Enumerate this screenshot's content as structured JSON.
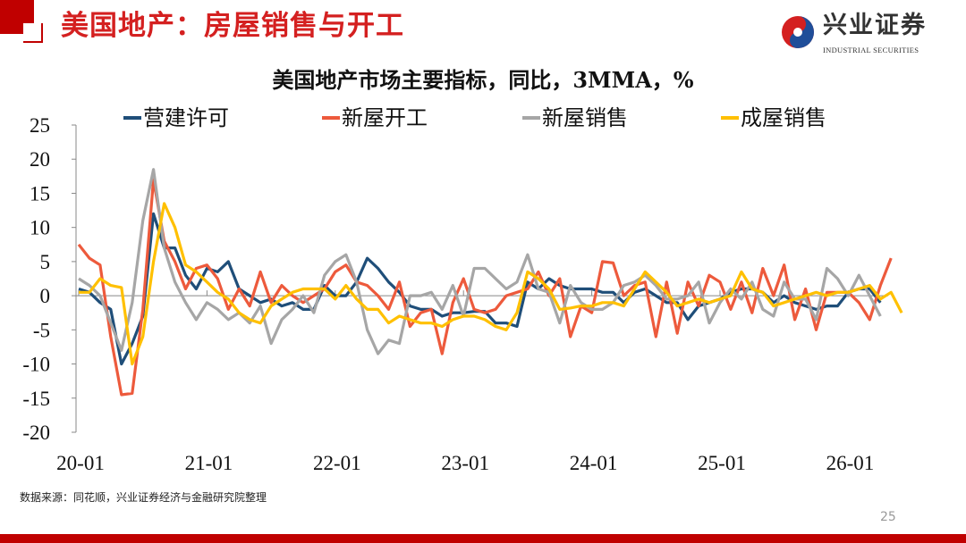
{
  "slide": {
    "title": "美国地产：房屋销售与开工",
    "logo_cn": "兴业证券",
    "logo_en": "INDUSTRIAL SECURITIES",
    "source": "数据来源：同花顺，兴业证券经济与金融研究院整理",
    "page_number": "25",
    "accent_color": "#c00000"
  },
  "chart_data": {
    "type": "line",
    "title": "美国地产市场主要指标，同比，3MMA，%",
    "x_start": "2020-01",
    "x_frequency": "monthly",
    "x_tick_labels": [
      "20-01",
      "21-01",
      "22-01",
      "23-01",
      "24-01",
      "25-01",
      "26-01"
    ],
    "y_tick_labels": [
      "25",
      "20",
      "15",
      "10",
      "5",
      "0",
      "-5",
      "-10",
      "-15",
      "-20"
    ],
    "ylim": [
      -20,
      25
    ],
    "grid": false,
    "legend_position": "top",
    "series": [
      {
        "name": "营建许可",
        "color": "#1f4e79",
        "values": [
          1,
          0.5,
          -1,
          -2,
          -10,
          -7,
          -3,
          12,
          7,
          7,
          3,
          1,
          4,
          3.5,
          5,
          1,
          0,
          -1,
          -0.5,
          -1.5,
          -1,
          -2,
          -2,
          1.5,
          0,
          0,
          2,
          5.5,
          4,
          2,
          0.5,
          -1.5,
          -2,
          -2,
          -3,
          -2.5,
          -2.5,
          -2.3,
          -2.3,
          -4,
          -4,
          -4.5,
          2,
          1,
          2.5,
          1.5,
          1,
          1,
          1,
          0.5,
          0.5,
          -1,
          0.5,
          1,
          0,
          -1,
          -1,
          -3.5,
          -1.5,
          -1,
          -0.5,
          0.5,
          1,
          1,
          0.5,
          -1,
          0,
          -1,
          -1.5,
          -2,
          -1.5,
          -1.5,
          0.5,
          1,
          1,
          -1
        ]
      },
      {
        "name": "新屋开工",
        "color": "#ed5a3c",
        "values": [
          7.5,
          5.5,
          4.5,
          -6,
          -14.5,
          -14.3,
          -2,
          17,
          8,
          5,
          1,
          4,
          4.5,
          2.5,
          -2,
          1,
          -1.5,
          3.5,
          -1,
          1.5,
          0,
          -1,
          0,
          1,
          3.5,
          4.5,
          2,
          1.5,
          0,
          -2,
          2,
          -4.5,
          -2.5,
          -2,
          -8.5,
          -1,
          2.5,
          -2,
          -2.5,
          -2,
          0,
          0.5,
          1,
          3.5,
          0,
          2.5,
          -6,
          -1.5,
          -2.5,
          5,
          4.8,
          0,
          1.5,
          2,
          -6,
          2,
          -5.5,
          2,
          -1.5,
          3,
          2,
          -2,
          2,
          -2.5,
          4,
          0,
          4.5,
          -3.5,
          1,
          -5,
          0.5,
          0.5,
          0.5,
          -1,
          -3.5,
          1.5,
          5.5
        ]
      },
      {
        "name": "新屋销售",
        "color": "#a6a6a6",
        "values": [
          2.5,
          1.5,
          0,
          -4,
          -8,
          -1,
          11,
          18.5,
          7,
          2,
          -1,
          -3.5,
          -1,
          -2,
          -3.5,
          -2.5,
          -4,
          -1.5,
          -7,
          -3.5,
          -2,
          0,
          -2.5,
          3,
          5,
          6,
          2,
          -5,
          -8.5,
          -6.5,
          -7,
          0,
          0,
          0.5,
          -2,
          1.5,
          -3,
          4,
          4,
          2.5,
          1,
          2,
          6,
          1,
          0.5,
          -4,
          1.5,
          -1,
          -2,
          -2,
          -1,
          1.5,
          2,
          3,
          1.5,
          -0.5,
          -0.5,
          0,
          2,
          -4,
          -1,
          1,
          -0.5,
          2,
          -2,
          -3,
          2,
          -0.5,
          -0.5,
          -3.5,
          4,
          2.5,
          0,
          3,
          0,
          -3
        ]
      },
      {
        "name": "成屋销售",
        "color": "#ffc000",
        "values": [
          0.5,
          0.5,
          2.5,
          1.5,
          1.2,
          -10,
          -6,
          5,
          13.5,
          10,
          4.5,
          3.5,
          2,
          0.5,
          -0.5,
          -2.5,
          -3.5,
          -4,
          -1.5,
          -0.5,
          0.5,
          1,
          1,
          1,
          -0.5,
          1.5,
          -0.5,
          -2,
          -2,
          -4,
          -3,
          -3.5,
          -4,
          -4,
          -4.5,
          -3.5,
          -3,
          -3,
          -3.5,
          -4.5,
          -5,
          -2.5,
          3.5,
          2.5,
          1,
          -2,
          -1.8,
          -1.5,
          -1.5,
          -1,
          -1,
          -1.5,
          1,
          3.5,
          2,
          0.5,
          -1.5,
          -1,
          -0.5,
          -1,
          -0.5,
          0,
          3.5,
          1,
          0.5,
          -1.5,
          -1,
          -0.5,
          0,
          0.5,
          0,
          0.5,
          0.5,
          1,
          1.5,
          -0.5,
          0.5,
          -2.5
        ]
      }
    ]
  }
}
